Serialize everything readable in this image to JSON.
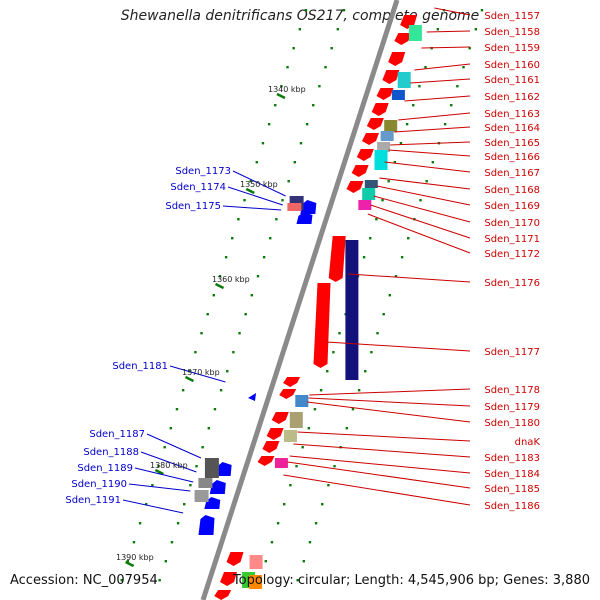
{
  "title": "Shewanella denitrificans OS217, complete genome",
  "footer": {
    "accession": "Accession: NC_007954",
    "topology": "Topology: circular; Length: 4,545,906 bp; Genes: 3,880"
  },
  "colors": {
    "backbone": "#8a8a8a",
    "tick": "#0a7a0a",
    "forward_label": "#cc0000",
    "reverse_label": "#0000cc",
    "forward_gene": "#ff0000",
    "reverse_gene": "#0000ff"
  },
  "kbp_labels": [
    "1340 kbp",
    "1350 kbp",
    "1360 kbp",
    "1370 kbp",
    "1380 kbp",
    "1390 kbp"
  ],
  "forward_labels": [
    "Sden_1157",
    "Sden_1158",
    "Sden_1159",
    "Sden_1160",
    "Sden_1161",
    "Sden_1162",
    "Sden_1163",
    "Sden_1164",
    "Sden_1165",
    "Sden_1166",
    "Sden_1167",
    "Sden_1168",
    "Sden_1169",
    "Sden_1170",
    "Sden_1171",
    "Sden_1172",
    "Sden_1176",
    "Sden_1177",
    "Sden_1178",
    "Sden_1179",
    "Sden_1180",
    "dnaK",
    "Sden_1183",
    "Sden_1184",
    "Sden_1185",
    "Sden_1186"
  ],
  "reverse_labels": [
    "Sden_1173",
    "Sden_1174",
    "Sden_1175",
    "Sden_1181",
    "Sden_1187",
    "Sden_1188",
    "Sden_1189",
    "Sden_1190",
    "Sden_1191"
  ]
}
